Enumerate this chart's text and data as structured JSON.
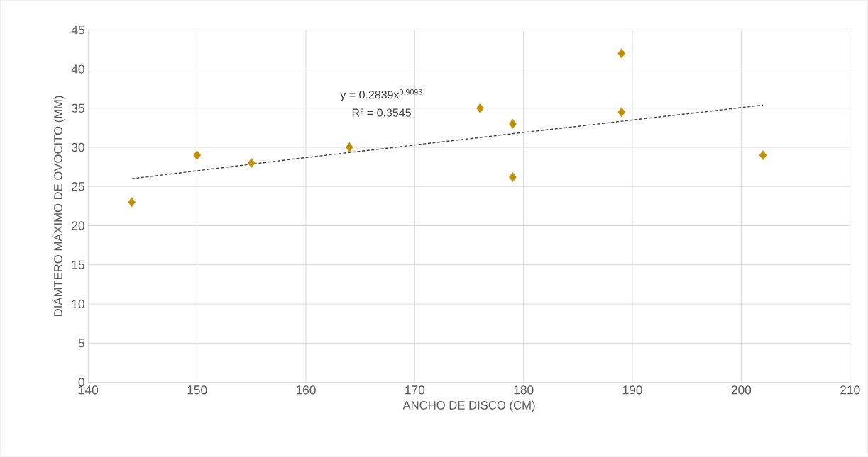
{
  "chart_data": {
    "type": "scatter",
    "xlabel": "ANCHO DE DISCO (CM)",
    "ylabel": "DIÁMTERO MÁXIMO DE OVOCITO (MM)",
    "annotations": [
      "y = 0.2839x$^{0.9093}$",
      "R² = 0.3545"
    ],
    "xlim": [
      140,
      210
    ],
    "xticks": [
      140,
      150,
      160,
      170,
      180,
      190,
      200,
      210
    ],
    "ylim": [
      0,
      45
    ],
    "yticks": [
      0,
      5,
      10,
      15,
      20,
      25,
      30,
      35,
      40,
      45
    ],
    "grid": true,
    "series": [
      {
        "color": "#bf9000",
        "marker": "diamond",
        "x": [
          144,
          150,
          155,
          164,
          176,
          179,
          179,
          189,
          189,
          202
        ],
        "values": [
          23,
          29,
          28,
          30,
          35,
          33,
          26.2,
          42,
          34.5,
          29
        ]
      },
      {
        "type": "line",
        "color": "#404040",
        "marker": "none",
        "line_style": "dashed",
        "x": [
          144,
          160,
          180,
          202
        ],
        "values": [
          26.0,
          28.7,
          31.9,
          35.4
        ]
      }
    ]
  }
}
